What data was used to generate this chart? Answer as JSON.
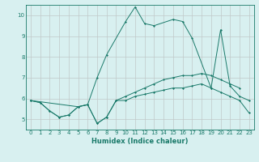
{
  "xlabel": "Humidex (Indice chaleur)",
  "x_values": [
    0,
    1,
    2,
    3,
    4,
    5,
    6,
    7,
    8,
    9,
    10,
    11,
    12,
    13,
    14,
    15,
    16,
    17,
    18,
    19,
    20,
    21,
    22,
    23
  ],
  "line1_y": [
    5.9,
    5.8,
    5.4,
    5.1,
    5.2,
    5.6,
    5.7,
    4.8,
    5.1,
    5.9,
    5.9,
    6.1,
    6.2,
    6.3,
    6.4,
    6.5,
    6.5,
    6.6,
    6.7,
    6.5,
    6.3,
    6.1,
    5.9,
    5.3
  ],
  "line2_y": [
    5.9,
    5.8,
    5.4,
    5.1,
    5.2,
    5.6,
    5.7,
    4.8,
    5.1,
    5.9,
    6.1,
    6.3,
    6.5,
    6.7,
    6.9,
    7.0,
    7.1,
    7.1,
    7.2,
    7.1,
    6.9,
    6.7,
    6.5,
    null
  ],
  "line3_y": [
    5.9,
    null,
    null,
    null,
    null,
    5.6,
    5.7,
    7.0,
    8.1,
    null,
    9.7,
    10.4,
    9.6,
    9.5,
    null,
    9.8,
    9.7,
    8.9,
    null,
    6.5,
    9.3,
    6.6,
    6.1,
    5.9
  ],
  "line_color": "#1a7a6a",
  "bg_color": "#d8f0f0",
  "grid_color": "#c0c8c8",
  "ylim": [
    4.5,
    10.5
  ],
  "xlim": [
    -0.5,
    23.5
  ],
  "yticks": [
    5,
    6,
    7,
    8,
    9,
    10
  ],
  "xticks": [
    0,
    1,
    2,
    3,
    4,
    5,
    6,
    7,
    8,
    9,
    10,
    11,
    12,
    13,
    14,
    15,
    16,
    17,
    18,
    19,
    20,
    21,
    22,
    23
  ],
  "tick_fontsize": 5,
  "xlabel_fontsize": 6
}
